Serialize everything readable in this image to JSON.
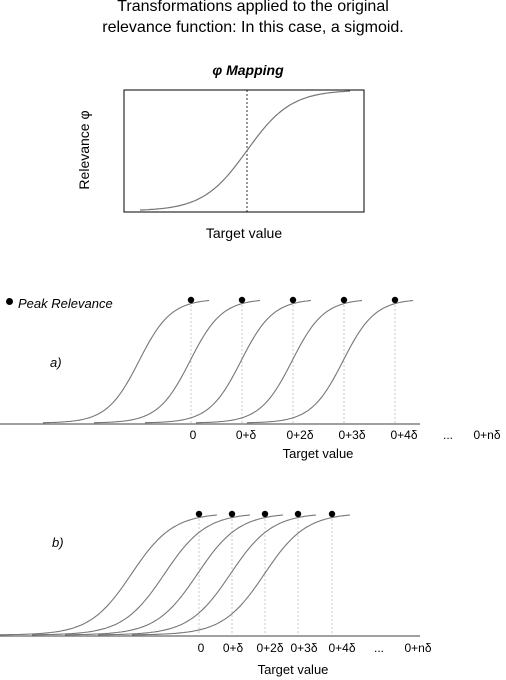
{
  "title_line1": "Transformations applied to the original",
  "title_line2": "relevance function: In this case, a sigmoid.",
  "mapping": {
    "title": "φ Mapping",
    "ylabel": "Relevance φ",
    "xlabel": "Target value"
  },
  "legend_label": "Peak Relevance",
  "panel_a": {
    "label": "a)",
    "ticks": [
      "0",
      "0+δ",
      "0+2δ",
      "0+3δ",
      "0+4δ",
      "...",
      "0+nδ"
    ],
    "xlabel": "Target value"
  },
  "panel_b": {
    "label": "b)",
    "ticks": [
      "0",
      "0+δ",
      "0+2δ",
      "0+3δ",
      "0+4δ",
      "...",
      "0+nδ"
    ],
    "xlabel": "Target value"
  }
}
